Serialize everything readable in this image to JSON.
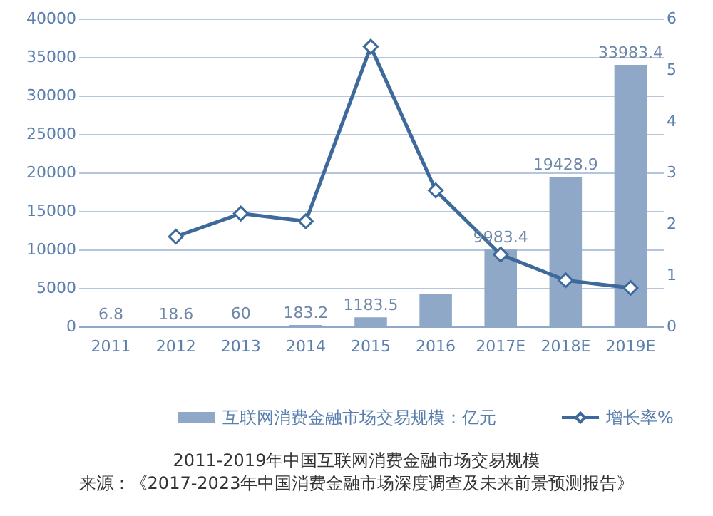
{
  "chart_data": {
    "type": "bar",
    "title": "2011-2019年中国互联网消费金融市场交易规模",
    "annotations": [
      "来源：《2017-2023年中国消费金融市场深度调查及未来前景预测报告》"
    ],
    "categories": [
      "2011",
      "2012",
      "2013",
      "2014",
      "2015",
      "2016",
      "2017E",
      "2018E",
      "2019E"
    ],
    "series": [
      {
        "name": "互联网消费金融市场交易规模：亿元",
        "color": "#8fa8c8",
        "values": [
          6.8,
          18.6,
          60,
          183.2,
          1183.5,
          4200,
          9983.4,
          19428.9,
          33983.4
        ],
        "value_labels": [
          "6.8",
          "18.6",
          "60",
          "183.2",
          "1183.5",
          null,
          "9983.4",
          "19428.9",
          "33983.4"
        ]
      },
      {
        "name": "增长率%",
        "type": "line",
        "axis": "y2",
        "color": "#3d6a9a",
        "marker": "diamond",
        "line_style": "solid",
        "values": [
          null,
          1.75,
          2.2,
          2.05,
          5.45,
          2.65,
          1.4,
          0.9,
          0.75
        ]
      }
    ],
    "ylim": [
      0,
      40000
    ],
    "yticks": [
      0,
      5000,
      10000,
      15000,
      20000,
      25000,
      30000,
      35000,
      40000
    ],
    "y2lim": [
      0,
      6
    ],
    "y2ticks": [
      0,
      1,
      2,
      3,
      4,
      5,
      6
    ],
    "grid": "y",
    "legend": "bottom"
  }
}
